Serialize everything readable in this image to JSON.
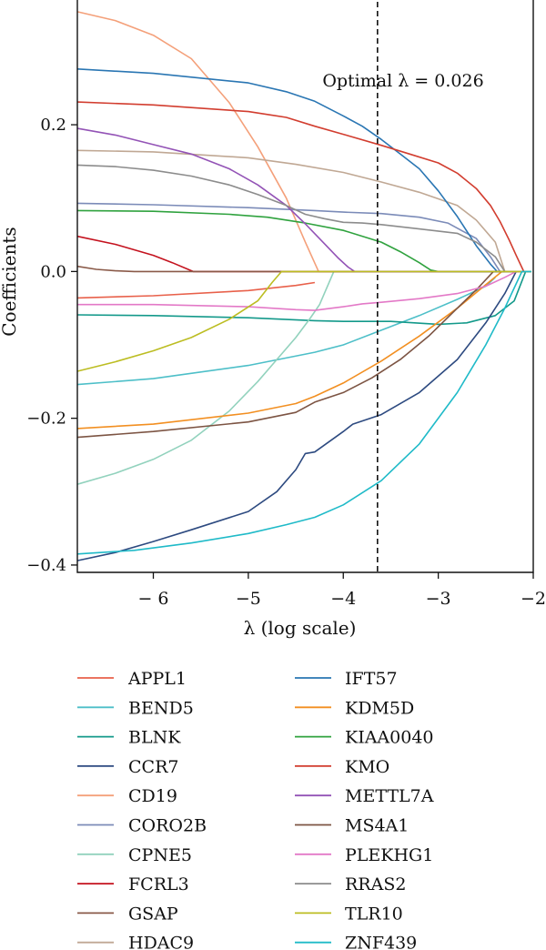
{
  "chart_data": {
    "type": "line",
    "title": "",
    "xlabel": "λ (log scale)",
    "ylabel": "Coefficients",
    "xlim": [
      -6.8,
      -2.0
    ],
    "ylim": [
      -0.41,
      0.37
    ],
    "xticks": [
      -6,
      -5,
      -4,
      -3,
      -2
    ],
    "xtick_labels": [
      "− 6",
      "−5",
      "−4",
      "−3",
      "−2"
    ],
    "yticks": [
      -0.4,
      -0.2,
      0.0,
      0.2
    ],
    "ytick_labels": [
      "−0.4",
      "−0.2",
      "0.0",
      "0.2"
    ],
    "grid": false,
    "legend_position": "bottom",
    "vline": {
      "x": -3.64,
      "label": "Optimal λ = 0.026"
    },
    "series": [
      {
        "name": "APPL1",
        "color": "#e8604a",
        "x": [
          -6.8,
          -6.0,
          -5.0,
          -4.5,
          -4.3
        ],
        "y": [
          -0.036,
          -0.033,
          -0.026,
          -0.019,
          -0.015
        ]
      },
      {
        "name": "BEND5",
        "color": "#4dbfc8",
        "x": [
          -6.8,
          -6.0,
          -5.0,
          -4.3,
          -4.0,
          -3.6,
          -3.2,
          -2.8,
          -2.5,
          -2.4
        ],
        "y": [
          -0.154,
          -0.146,
          -0.128,
          -0.11,
          -0.1,
          -0.08,
          -0.06,
          -0.038,
          -0.02,
          -0.008
        ]
      },
      {
        "name": "BLNK",
        "color": "#13998a",
        "x": [
          -6.8,
          -6.0,
          -5.0,
          -4.3,
          -4.0,
          -3.5,
          -3.0,
          -2.7,
          -2.4,
          -2.2,
          -2.08
        ],
        "y": [
          -0.059,
          -0.06,
          -0.063,
          -0.067,
          -0.068,
          -0.068,
          -0.072,
          -0.07,
          -0.06,
          -0.04,
          0.0
        ]
      },
      {
        "name": "CCR7",
        "color": "#2d4a80",
        "x": [
          -6.8,
          -6.4,
          -6.0,
          -5.6,
          -5.0,
          -4.7,
          -4.5,
          -4.4,
          -4.3,
          -4.0,
          -3.9,
          -3.6,
          -3.2,
          -2.8,
          -2.5,
          -2.3,
          -2.18
        ],
        "y": [
          -0.394,
          -0.383,
          -0.368,
          -0.352,
          -0.327,
          -0.3,
          -0.27,
          -0.248,
          -0.246,
          -0.218,
          -0.208,
          -0.195,
          -0.165,
          -0.12,
          -0.07,
          -0.03,
          0.0
        ]
      },
      {
        "name": "CD19",
        "color": "#f4a07a",
        "x": [
          -6.8,
          -6.4,
          -6.0,
          -5.6,
          -5.2,
          -4.9,
          -4.6,
          -4.4,
          -4.26
        ],
        "y": [
          0.354,
          0.342,
          0.322,
          0.29,
          0.23,
          0.17,
          0.1,
          0.04,
          0.0
        ]
      },
      {
        "name": "CORO2B",
        "color": "#7b8bb8",
        "x": [
          -6.8,
          -6.0,
          -5.0,
          -4.3,
          -4.0,
          -3.6,
          -3.2,
          -2.9,
          -2.6,
          -2.45,
          -2.35
        ],
        "y": [
          0.093,
          0.091,
          0.087,
          0.083,
          0.081,
          0.079,
          0.074,
          0.066,
          0.045,
          0.02,
          0.0
        ]
      },
      {
        "name": "CPNE5",
        "color": "#92d2bd",
        "x": [
          -6.8,
          -6.4,
          -6.0,
          -5.6,
          -5.2,
          -4.9,
          -4.7,
          -4.5,
          -4.35,
          -4.25,
          -4.2,
          -4.15,
          -4.1
        ],
        "y": [
          -0.29,
          -0.275,
          -0.256,
          -0.23,
          -0.19,
          -0.15,
          -0.12,
          -0.09,
          -0.064,
          -0.045,
          -0.03,
          -0.015,
          0.0
        ]
      },
      {
        "name": "FCRL3",
        "color": "#c4121e",
        "x": [
          -6.8,
          -6.4,
          -6.0,
          -5.8,
          -5.58
        ],
        "y": [
          0.048,
          0.037,
          0.022,
          0.012,
          0.0
        ]
      },
      {
        "name": "GSAP",
        "color": "#8a5a49",
        "x": [
          -6.8,
          -6.6,
          -6.4,
          -6.2
        ],
        "y": [
          0.007,
          0.003,
          0.001,
          0.0
        ]
      },
      {
        "name": "HDAC9",
        "color": "#c0a894",
        "x": [
          -6.8,
          -6.0,
          -5.0,
          -4.5,
          -4.0,
          -3.6,
          -3.2,
          -2.8,
          -2.6,
          -2.4,
          -2.3
        ],
        "y": [
          0.165,
          0.163,
          0.155,
          0.146,
          0.135,
          0.122,
          0.108,
          0.09,
          0.07,
          0.04,
          0.0
        ]
      },
      {
        "name": "IFT57",
        "color": "#2a76b3",
        "x": [
          -6.8,
          -6.0,
          -5.0,
          -4.6,
          -4.3,
          -4.0,
          -3.8,
          -3.6,
          -3.4,
          -3.2,
          -3.0,
          -2.8,
          -2.6,
          -2.45,
          -2.38
        ],
        "y": [
          0.276,
          0.27,
          0.257,
          0.245,
          0.232,
          0.212,
          0.198,
          0.18,
          0.16,
          0.14,
          0.11,
          0.075,
          0.035,
          0.01,
          0.0
        ]
      },
      {
        "name": "KDM5D",
        "color": "#f28f21",
        "x": [
          -6.8,
          -6.0,
          -5.0,
          -4.5,
          -4.3,
          -4.0,
          -3.6,
          -3.2,
          -2.8,
          -2.5,
          -2.33
        ],
        "y": [
          -0.214,
          -0.208,
          -0.193,
          -0.18,
          -0.17,
          -0.152,
          -0.122,
          -0.088,
          -0.05,
          -0.018,
          0.0
        ]
      },
      {
        "name": "KIAA0040",
        "color": "#2fa23e",
        "x": [
          -6.8,
          -6.0,
          -5.2,
          -4.8,
          -4.4,
          -4.0,
          -3.6,
          -3.4,
          -3.2,
          -3.08,
          -3.0
        ],
        "y": [
          0.083,
          0.082,
          0.078,
          0.074,
          0.066,
          0.056,
          0.04,
          0.027,
          0.012,
          0.002,
          0.0
        ]
      },
      {
        "name": "KMO",
        "color": "#d23d2f",
        "x": [
          -6.8,
          -6.0,
          -5.0,
          -4.6,
          -4.3,
          -4.0,
          -3.6,
          -3.3,
          -3.0,
          -2.8,
          -2.6,
          -2.45,
          -2.35,
          -2.25,
          -2.18,
          -2.1
        ],
        "y": [
          0.231,
          0.227,
          0.218,
          0.21,
          0.198,
          0.187,
          0.172,
          0.16,
          0.148,
          0.134,
          0.113,
          0.09,
          0.068,
          0.042,
          0.022,
          0.0
        ]
      },
      {
        "name": "METTL7A",
        "color": "#9353b6",
        "x": [
          -6.8,
          -6.4,
          -6.0,
          -5.6,
          -5.2,
          -4.9,
          -4.6,
          -4.4,
          -4.2,
          -4.05,
          -3.95,
          -3.88
        ],
        "y": [
          0.195,
          0.186,
          0.173,
          0.16,
          0.14,
          0.118,
          0.09,
          0.065,
          0.038,
          0.018,
          0.006,
          0.0
        ]
      },
      {
        "name": "MS4A1",
        "color": "#7c5443",
        "x": [
          -6.8,
          -6.0,
          -5.0,
          -4.5,
          -4.3,
          -4.0,
          -3.7,
          -3.4,
          -3.1,
          -2.8,
          -2.6,
          -2.42
        ],
        "y": [
          -0.226,
          -0.218,
          -0.205,
          -0.192,
          -0.178,
          -0.165,
          -0.145,
          -0.12,
          -0.088,
          -0.05,
          -0.025,
          0.0
        ]
      },
      {
        "name": "PLEKHG1",
        "color": "#e379c7",
        "x": [
          -6.8,
          -6.0,
          -5.0,
          -4.5,
          -4.3,
          -4.0,
          -3.8,
          -3.6,
          -3.2,
          -2.8,
          -2.5,
          -2.3,
          -2.18
        ],
        "y": [
          -0.045,
          -0.045,
          -0.048,
          -0.052,
          -0.053,
          -0.048,
          -0.044,
          -0.042,
          -0.037,
          -0.03,
          -0.02,
          -0.008,
          0.0
        ]
      },
      {
        "name": "RRAS2",
        "color": "#8c8c8c",
        "x": [
          -6.8,
          -6.4,
          -6.0,
          -5.6,
          -5.2,
          -4.9,
          -4.6,
          -4.4,
          -4.2,
          -4.0,
          -3.8,
          -3.6,
          -3.2,
          -2.8,
          -2.6,
          -2.4,
          -2.3
        ],
        "y": [
          0.145,
          0.143,
          0.138,
          0.13,
          0.118,
          0.105,
          0.09,
          0.078,
          0.072,
          0.067,
          0.066,
          0.064,
          0.058,
          0.052,
          0.04,
          0.02,
          0.0
        ]
      },
      {
        "name": "TLR10",
        "color": "#bcbd22",
        "x": [
          -6.8,
          -6.4,
          -6.0,
          -5.6,
          -5.2,
          -4.9,
          -4.75,
          -4.65
        ],
        "y": [
          -0.136,
          -0.123,
          -0.108,
          -0.09,
          -0.065,
          -0.04,
          -0.015,
          0.0
        ]
      },
      {
        "name": "ZNF439",
        "color": "#1fbac8",
        "x": [
          -6.8,
          -6.2,
          -5.6,
          -5.0,
          -4.6,
          -4.3,
          -4.0,
          -3.6,
          -3.2,
          -2.8,
          -2.5,
          -2.3,
          -2.12
        ],
        "y": [
          -0.385,
          -0.38,
          -0.37,
          -0.357,
          -0.345,
          -0.335,
          -0.318,
          -0.285,
          -0.235,
          -0.165,
          -0.1,
          -0.05,
          0.0
        ]
      }
    ]
  }
}
